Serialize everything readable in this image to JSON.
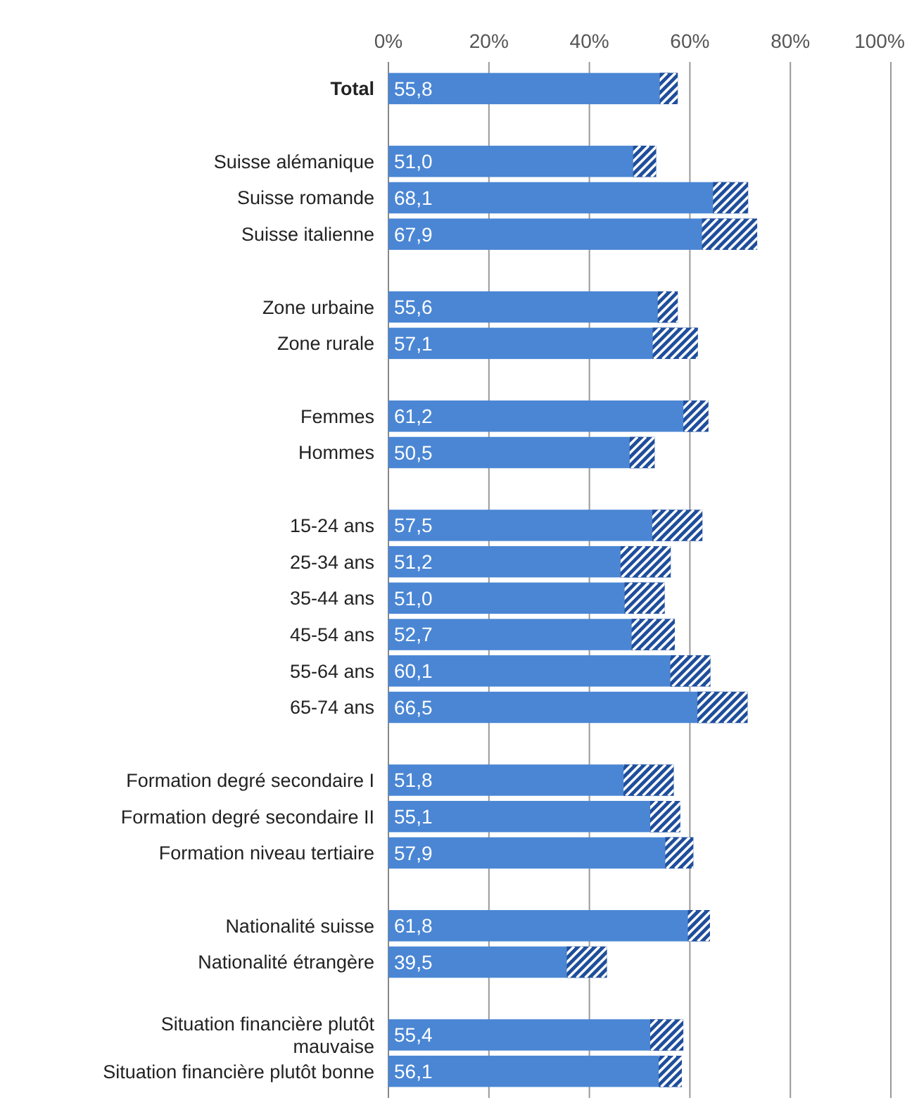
{
  "chart_data": {
    "type": "bar",
    "orientation": "horizontal",
    "categories": [
      "Total",
      null,
      "Suisse alémanique",
      "Suisse romande",
      "Suisse italienne",
      null,
      "Zone urbaine",
      "Zone rurale",
      null,
      "Femmes",
      "Hommes",
      null,
      "15-24 ans",
      "25-34 ans",
      "35-44 ans",
      "45-54 ans",
      "55-64 ans",
      "65-74 ans",
      null,
      "Formation degré secondaire I",
      "Formation degré secondaire II",
      "Formation niveau tertiaire",
      null,
      "Nationalité suisse",
      "Nationalité étrangère",
      null,
      "Situation financière plutôt mauvaise",
      "Situation financière plutôt bonne"
    ],
    "values": [
      55.8,
      null,
      51.0,
      68.1,
      67.9,
      null,
      55.6,
      57.1,
      null,
      61.2,
      50.5,
      null,
      57.5,
      51.2,
      51.0,
      52.7,
      60.1,
      66.5,
      null,
      51.8,
      55.1,
      57.9,
      null,
      61.8,
      39.5,
      null,
      55.4,
      56.1
    ],
    "errors": [
      1.8,
      null,
      2.3,
      3.5,
      5.5,
      null,
      2,
      4.5,
      null,
      2.5,
      2.5,
      null,
      5,
      5,
      4,
      4.3,
      4,
      5,
      null,
      5,
      3,
      2.8,
      null,
      2.2,
      4,
      null,
      3.3,
      2.3
    ],
    "value_labels": [
      "55,8",
      null,
      "51,0",
      "68,1",
      "67,9",
      null,
      "55,6",
      "57,1",
      null,
      "61,2",
      "50,5",
      null,
      "57,5",
      "51,2",
      "51,0",
      "52,7",
      "60,1",
      "66,5",
      null,
      "51,8",
      "55,1",
      "57,9",
      null,
      "61,8",
      "39,5",
      null,
      "55,4",
      "56,1"
    ],
    "color": "#4a86d4",
    "xlim": [
      0,
      100
    ],
    "xticks": [
      {
        "value": 0,
        "label": "0%"
      },
      {
        "value": 20,
        "label": "20%"
      },
      {
        "value": 40,
        "label": "40%"
      },
      {
        "value": 60,
        "label": "60%"
      },
      {
        "value": 80,
        "label": "80%"
      },
      {
        "value": 100,
        "label": "100%"
      }
    ],
    "grid": "x"
  }
}
